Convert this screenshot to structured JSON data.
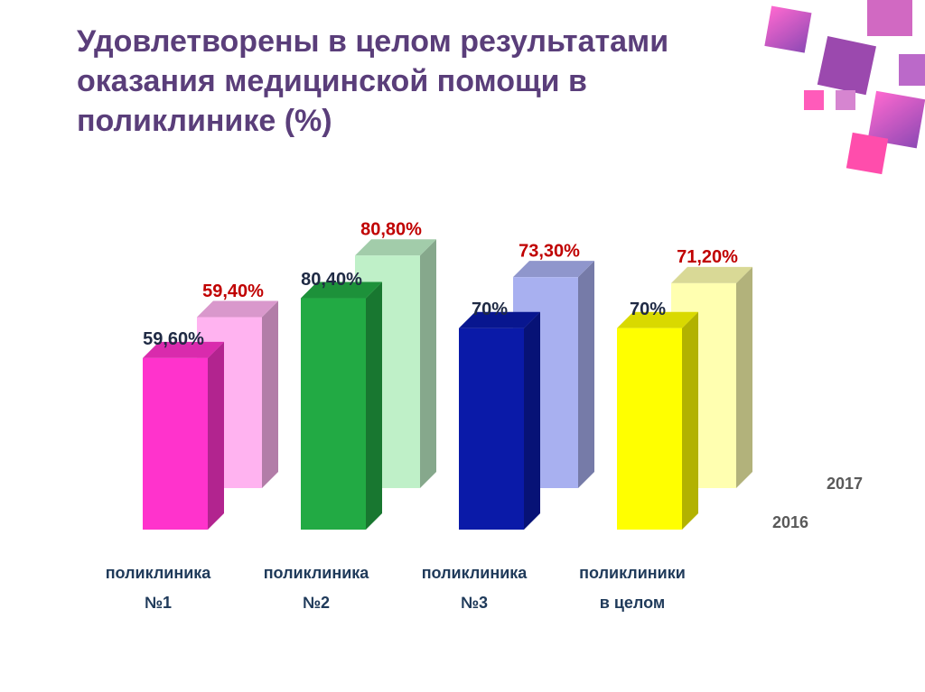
{
  "chart_data": {
    "type": "bar3d",
    "title": [
      "Удовлетворены в целом результатами",
      "оказания медицинской помощи в",
      "поликлинике (%)"
    ],
    "categories": [
      [
        "поликлиника",
        "№1"
      ],
      [
        "поликлиника",
        "№2"
      ],
      [
        "поликлиника",
        "№3"
      ],
      [
        "поликлиники",
        "в целом"
      ]
    ],
    "ylim": [
      0,
      100
    ],
    "series": [
      {
        "name": "2017",
        "colors": [
          "#ffb3f0",
          "#bff0c8",
          "#a8b0f0",
          "#ffffb0"
        ],
        "label_color": "#c00000",
        "values": [
          59.4,
          80.8,
          73.3,
          71.2
        ],
        "value_labels": [
          "59,40%",
          "80,80%",
          "73,30%",
          "71,20%"
        ]
      },
      {
        "name": "2016",
        "colors": [
          "#ff33cc",
          "#22aa44",
          "#0a1aa8",
          "#ffff00"
        ],
        "label_color": "#1f2a44",
        "values": [
          59.6,
          80.4,
          70,
          70
        ],
        "value_labels": [
          "59,60%",
          "80,40%",
          "70%",
          "70%"
        ]
      }
    ]
  }
}
